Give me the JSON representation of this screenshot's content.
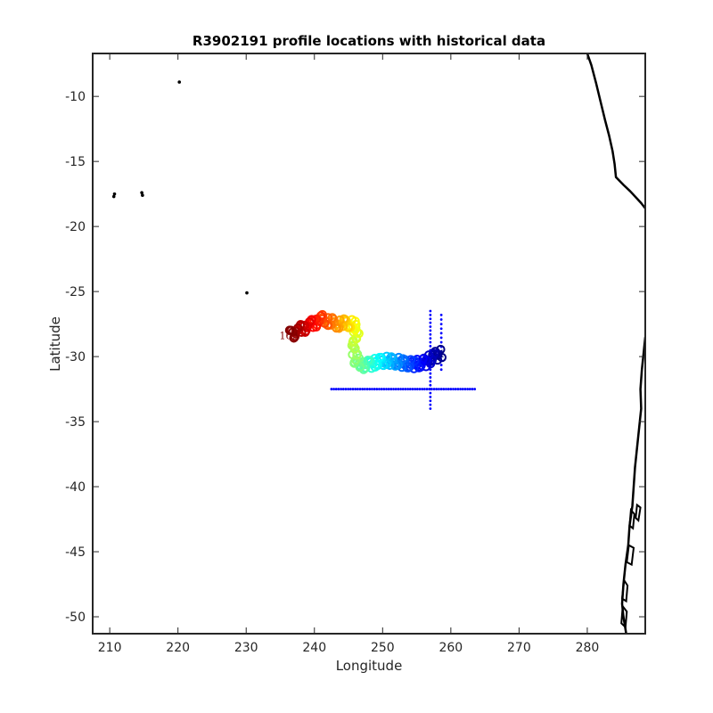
{
  "chart_data": {
    "type": "scatter",
    "title": "R3902191 profile locations with historical data",
    "xlabel": "Longitude",
    "ylabel": "Latitude",
    "xlim": [
      207.5,
      288.5
    ],
    "ylim": [
      -51.3,
      -6.7
    ],
    "xticks": [
      210,
      220,
      230,
      240,
      250,
      260,
      270,
      280
    ],
    "yticks": [
      -10,
      -15,
      -20,
      -25,
      -30,
      -35,
      -40,
      -45,
      -50
    ],
    "grid": false,
    "legend": "none",
    "colormap": "jet",
    "annotations": [
      "1",
      "162"
    ],
    "series": [
      {
        "role": "historical",
        "color": "#0000ff",
        "segments": [
          {
            "lat": -32.5,
            "lon_from": 242.5,
            "lon_to": 263.5,
            "step": 0.35
          },
          {
            "lon": 257.0,
            "lat_from": -34.0,
            "lat_to": -26.3,
            "step": 0.3
          },
          {
            "lon": 258.6,
            "lat_from": -31.0,
            "lat_to": -26.6,
            "step": 0.35
          }
        ]
      },
      {
        "role": "float-profiles",
        "count": 162,
        "track": [
          [
            258.5,
            -29.8
          ],
          [
            257.5,
            -30.0
          ],
          [
            256.0,
            -30.5
          ],
          [
            254.0,
            -30.6
          ],
          [
            252.0,
            -30.4
          ],
          [
            250.0,
            -30.3
          ],
          [
            248.5,
            -30.5
          ],
          [
            247.0,
            -30.7
          ],
          [
            246.0,
            -30.3
          ],
          [
            245.8,
            -29.0
          ],
          [
            246.2,
            -27.8
          ],
          [
            245.0,
            -27.4
          ],
          [
            243.0,
            -27.5
          ],
          [
            241.0,
            -27.1
          ],
          [
            239.5,
            -27.5
          ],
          [
            237.5,
            -28.0
          ],
          [
            236.5,
            -28.3
          ]
        ]
      }
    ],
    "coastlines": {
      "color": "#000000",
      "mainland": [
        [
          280.0,
          -6.7
        ],
        [
          280.6,
          -7.6
        ],
        [
          281.3,
          -9.0
        ],
        [
          282.0,
          -10.5
        ],
        [
          282.6,
          -11.8
        ],
        [
          283.2,
          -13.0
        ],
        [
          283.7,
          -14.2
        ],
        [
          284.0,
          -15.2
        ],
        [
          284.2,
          -16.2
        ],
        [
          285.3,
          -16.8
        ],
        [
          286.3,
          -17.3
        ],
        [
          287.2,
          -17.8
        ],
        [
          287.9,
          -18.2
        ],
        [
          288.5,
          -18.6
        ]
      ],
      "chile_coast": [
        [
          288.5,
          -28.5
        ],
        [
          288.3,
          -29.5
        ],
        [
          288.0,
          -31.0
        ],
        [
          287.8,
          -32.5
        ],
        [
          287.9,
          -34.0
        ],
        [
          287.6,
          -35.5
        ],
        [
          287.3,
          -37.0
        ],
        [
          287.0,
          -38.5
        ],
        [
          286.8,
          -40.0
        ],
        [
          286.6,
          -41.5
        ],
        [
          286.2,
          -43.0
        ],
        [
          286.0,
          -44.5
        ],
        [
          285.6,
          -46.0
        ],
        [
          285.3,
          -47.5
        ],
        [
          285.1,
          -49.0
        ],
        [
          285.3,
          -50.0
        ],
        [
          285.7,
          -51.3
        ]
      ],
      "chile_islands": [
        [
          [
            286.4,
            -41.8
          ],
          [
            286.9,
            -42.1
          ],
          [
            286.7,
            -43.2
          ],
          [
            286.2,
            -43.0
          ]
        ],
        [
          [
            286.1,
            -44.5
          ],
          [
            286.8,
            -44.7
          ],
          [
            286.5,
            -46.0
          ],
          [
            285.8,
            -45.8
          ]
        ],
        [
          [
            285.4,
            -47.2
          ],
          [
            285.9,
            -47.6
          ],
          [
            285.7,
            -48.8
          ],
          [
            285.1,
            -48.6
          ]
        ],
        [
          [
            285.2,
            -49.2
          ],
          [
            285.8,
            -49.6
          ],
          [
            285.6,
            -50.8
          ],
          [
            285.0,
            -50.5
          ]
        ],
        [
          [
            287.3,
            -41.4
          ],
          [
            287.8,
            -41.6
          ],
          [
            287.5,
            -42.6
          ],
          [
            287.1,
            -42.4
          ]
        ]
      ],
      "islands": [
        [
          220.2,
          -8.9
        ],
        [
          210.7,
          -17.5
        ],
        [
          210.6,
          -17.7
        ],
        [
          214.7,
          -17.4
        ],
        [
          214.8,
          -17.6
        ],
        [
          230.1,
          -25.1
        ]
      ]
    }
  }
}
